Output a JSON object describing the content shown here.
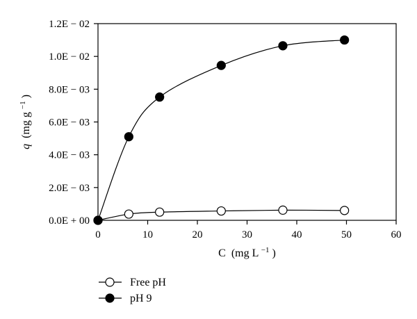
{
  "chart_data": {
    "type": "line",
    "title": "",
    "xlabel": {
      "main": "C",
      "unit_pre": "(mg L",
      "unit_sup": "−1",
      "unit_post": ")"
    },
    "ylabel": {
      "main": "q",
      "unit_pre": "(mg g",
      "unit_sup": "−1",
      "unit_post": ")"
    },
    "xlim": [
      0,
      60
    ],
    "ylim": [
      0,
      0.012
    ],
    "x_ticks": [
      0,
      10,
      20,
      30,
      40,
      50,
      60
    ],
    "x_tick_labels": [
      "0",
      "10",
      "20",
      "30",
      "40",
      "50",
      "60"
    ],
    "y_ticks": [
      0,
      0.002,
      0.004,
      0.006,
      0.008,
      0.01,
      0.012
    ],
    "y_tick_labels": [
      "0.0E + 00",
      "2.0E − 03",
      "4.0E − 03",
      "6.0E − 03",
      "8.0E − 03",
      "1.0E − 02",
      "1.2E − 02"
    ],
    "grid": false,
    "legend_position": "bottom-left, below plot",
    "series": [
      {
        "name": "Free pH",
        "marker": "open-circle",
        "color": "#000000",
        "x": [
          0,
          6.2,
          12.4,
          24.8,
          37.2,
          49.6
        ],
        "y": [
          0.0,
          0.00038,
          0.0005,
          0.00057,
          0.00062,
          0.0006
        ]
      },
      {
        "name": "pH 9",
        "marker": "filled-circle",
        "color": "#000000",
        "x": [
          0,
          6.2,
          12.4,
          24.8,
          37.2,
          49.6
        ],
        "y": [
          0.0,
          0.0051,
          0.00752,
          0.00945,
          0.01065,
          0.011
        ]
      }
    ]
  }
}
